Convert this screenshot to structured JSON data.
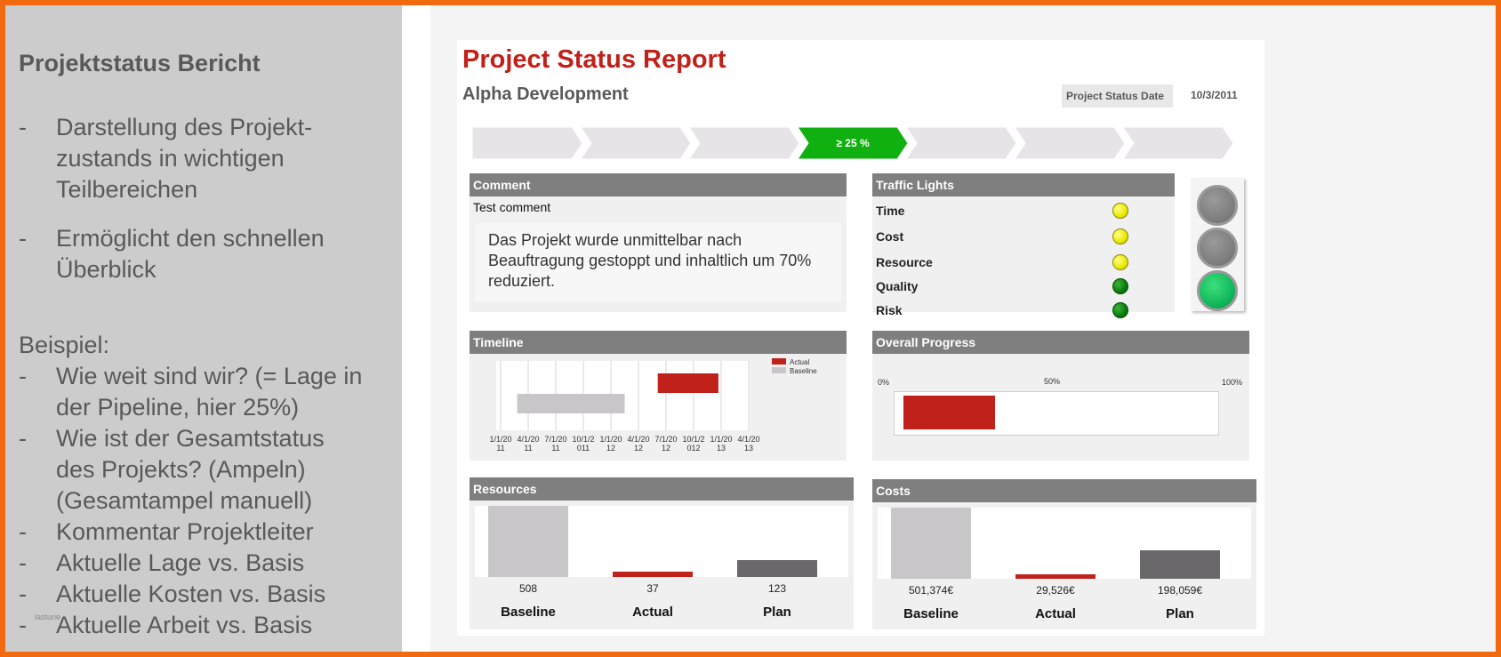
{
  "left_panel": {
    "title": "Projektstatus Bericht",
    "bullets_top": [
      {
        "dash": "-",
        "lines": [
          "Darstellung des Projekt-",
          "zustands in wichtigen",
          "Teilbereichen"
        ]
      },
      {
        "dash": "-",
        "lines": [
          "Ermöglicht den schnellen",
          "Überblick"
        ]
      }
    ],
    "example_label": "Beispiel:",
    "bullets_example": [
      {
        "dash": "-",
        "lines": [
          "Wie weit sind wir? (= Lage in",
          "der Pipeline, hier 25%)"
        ]
      },
      {
        "dash": "-",
        "lines": [
          "Wie ist der Gesamtstatus",
          "des Projekts? (Ampeln)",
          "(Gesamtampel manuell)"
        ]
      },
      {
        "dash": "-",
        "lines": [
          "Kommentar Projektleiter"
        ]
      },
      {
        "dash": "-",
        "lines": [
          "Aktuelle Lage vs. Basis"
        ]
      },
      {
        "dash": "-",
        "lines": [
          "Aktuelle Kosten vs. Basis"
        ]
      },
      {
        "dash": "-",
        "lines": [
          "Aktuelle Arbeit vs. Basis"
        ]
      }
    ],
    "footnote": "lastune"
  },
  "report": {
    "title": "Project Status Report",
    "subtitle": "Alpha Development",
    "status_date_label": "Project Status Date",
    "status_date_value": "10/3/2011",
    "pipeline": {
      "active_index": 3,
      "active_label": "≥ 25 %",
      "stage_count": 7,
      "active_color": "#10b010",
      "inactive_color": "#e6e4e6"
    },
    "comment": {
      "header": "Comment",
      "subheader": "Test comment",
      "lines": [
        "Das Projekt wurde unmittelbar nach",
        "Beauftragung gestoppt und inhaltlich um 70%",
        "reduziert."
      ]
    },
    "traffic_lights": {
      "header": "Traffic Lights",
      "rows": [
        {
          "label": "Time",
          "status": "yellow"
        },
        {
          "label": "Cost",
          "status": "yellow"
        },
        {
          "label": "Resource",
          "status": "yellow"
        },
        {
          "label": "Quality",
          "status": "green"
        },
        {
          "label": "Risk",
          "status": "green"
        }
      ],
      "overall_lamp": [
        "off",
        "off",
        "on"
      ]
    },
    "timeline": {
      "header": "Timeline",
      "legend": [
        {
          "name": "Actual",
          "color": "#c0211a"
        },
        {
          "name": "Baseline",
          "color": "#c8c6c8"
        }
      ],
      "ticks": [
        [
          "1/1/20",
          "11"
        ],
        [
          "4/1/20",
          "11"
        ],
        [
          "7/1/20",
          "11"
        ],
        [
          "10/1/2",
          "011"
        ],
        [
          "1/1/20",
          "12"
        ],
        [
          "4/1/20",
          "12"
        ],
        [
          "7/1/20",
          "12"
        ],
        [
          "10/1/2",
          "012"
        ],
        [
          "1/1/20",
          "13"
        ],
        [
          "4/1/20",
          "13"
        ]
      ],
      "bars": [
        {
          "series": "Actual",
          "start_tick": 5.7,
          "end_tick": 7.9
        },
        {
          "series": "Baseline",
          "start_tick": 0.6,
          "end_tick": 4.5
        }
      ]
    },
    "overall_progress": {
      "header": "Overall Progress",
      "labels": [
        "0%",
        "50%",
        "100%"
      ],
      "value_percent": 29,
      "bar_color": "#c0211a"
    },
    "resources": {
      "header": "Resources",
      "chart_data": {
        "type": "bar",
        "categories": [
          "Baseline",
          "Actual",
          "Plan"
        ],
        "values": [
          508,
          37,
          123
        ],
        "value_labels": [
          "508",
          "37",
          "123"
        ],
        "colors": [
          "#c8c6c8",
          "#c0211a",
          "#6a686a"
        ],
        "ylim": [
          0,
          508
        ]
      }
    },
    "costs": {
      "header": "Costs",
      "chart_data": {
        "type": "bar",
        "categories": [
          "Baseline",
          "Actual",
          "Plan"
        ],
        "values": [
          501374,
          29526,
          198059
        ],
        "value_labels": [
          "501,374€",
          "29,526€",
          "198,059€"
        ],
        "colors": [
          "#c8c6c8",
          "#c0211a",
          "#6a686a"
        ],
        "ylim": [
          0,
          501374
        ]
      }
    }
  }
}
